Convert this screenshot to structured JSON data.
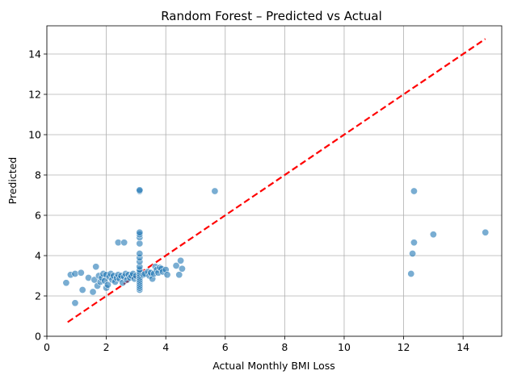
{
  "chart_data": {
    "type": "scatter",
    "title": "Random Forest – Predicted vs Actual",
    "xlabel": "Actual Monthly BMI Loss",
    "ylabel": "Predicted",
    "xlim": [
      0,
      15.3
    ],
    "ylim": [
      0,
      15.4
    ],
    "xticks": [
      0,
      2,
      4,
      6,
      8,
      10,
      12,
      14
    ],
    "yticks": [
      0,
      2,
      4,
      6,
      8,
      10,
      12,
      14
    ],
    "grid": true,
    "ideal_line": {
      "x": [
        0.7,
        14.75
      ],
      "y": [
        0.7,
        14.75
      ],
      "color": "#ff0000",
      "style": "dashed"
    },
    "point_color": "#1f77b4",
    "points": [
      [
        0.65,
        2.65
      ],
      [
        0.8,
        3.05
      ],
      [
        0.95,
        3.1
      ],
      [
        0.95,
        1.65
      ],
      [
        1.15,
        3.15
      ],
      [
        1.2,
        2.3
      ],
      [
        1.4,
        2.9
      ],
      [
        1.55,
        2.2
      ],
      [
        1.6,
        2.8
      ],
      [
        1.65,
        3.45
      ],
      [
        1.7,
        2.5
      ],
      [
        1.75,
        3.0
      ],
      [
        1.8,
        2.7
      ],
      [
        1.85,
        2.9
      ],
      [
        1.9,
        3.1
      ],
      [
        1.95,
        2.75
      ],
      [
        2.0,
        2.4
      ],
      [
        2.0,
        3.05
      ],
      [
        2.05,
        2.55
      ],
      [
        2.1,
        2.95
      ],
      [
        2.15,
        3.1
      ],
      [
        2.2,
        2.8
      ],
      [
        2.25,
        3.0
      ],
      [
        2.3,
        2.7
      ],
      [
        2.35,
        2.9
      ],
      [
        2.4,
        3.05
      ],
      [
        2.4,
        4.65
      ],
      [
        2.45,
        2.85
      ],
      [
        2.5,
        3.0
      ],
      [
        2.55,
        2.65
      ],
      [
        2.6,
        4.65
      ],
      [
        2.6,
        2.95
      ],
      [
        2.65,
        3.1
      ],
      [
        2.7,
        2.8
      ],
      [
        2.75,
        3.05
      ],
      [
        2.8,
        2.9
      ],
      [
        2.85,
        3.0
      ],
      [
        2.9,
        3.1
      ],
      [
        2.95,
        2.85
      ],
      [
        3.0,
        3.0
      ],
      [
        3.12,
        2.3
      ],
      [
        3.12,
        2.4
      ],
      [
        3.12,
        2.5
      ],
      [
        3.12,
        2.6
      ],
      [
        3.12,
        2.7
      ],
      [
        3.12,
        2.8
      ],
      [
        3.12,
        2.9
      ],
      [
        3.12,
        3.0
      ],
      [
        3.12,
        3.1
      ],
      [
        3.12,
        3.2
      ],
      [
        3.12,
        3.3
      ],
      [
        3.12,
        3.45
      ],
      [
        3.12,
        3.7
      ],
      [
        3.12,
        3.9
      ],
      [
        3.12,
        4.1
      ],
      [
        3.12,
        4.6
      ],
      [
        3.12,
        4.9
      ],
      [
        3.12,
        5.05
      ],
      [
        3.12,
        5.15
      ],
      [
        3.12,
        7.2
      ],
      [
        3.12,
        7.25
      ],
      [
        3.25,
        3.05
      ],
      [
        3.3,
        3.1
      ],
      [
        3.4,
        3.2
      ],
      [
        3.45,
        3.0
      ],
      [
        3.5,
        3.15
      ],
      [
        3.55,
        2.85
      ],
      [
        3.6,
        3.1
      ],
      [
        3.65,
        3.45
      ],
      [
        3.7,
        3.3
      ],
      [
        3.75,
        3.15
      ],
      [
        3.8,
        3.4
      ],
      [
        3.85,
        3.35
      ],
      [
        3.9,
        3.2
      ],
      [
        4.0,
        3.3
      ],
      [
        4.05,
        3.05
      ],
      [
        4.35,
        3.5
      ],
      [
        4.45,
        3.05
      ],
      [
        4.5,
        3.75
      ],
      [
        4.55,
        3.35
      ],
      [
        5.65,
        7.2
      ],
      [
        12.25,
        3.1
      ],
      [
        12.3,
        4.1
      ],
      [
        12.35,
        4.65
      ],
      [
        12.35,
        7.2
      ],
      [
        13.0,
        5.05
      ],
      [
        14.75,
        5.15
      ]
    ]
  }
}
